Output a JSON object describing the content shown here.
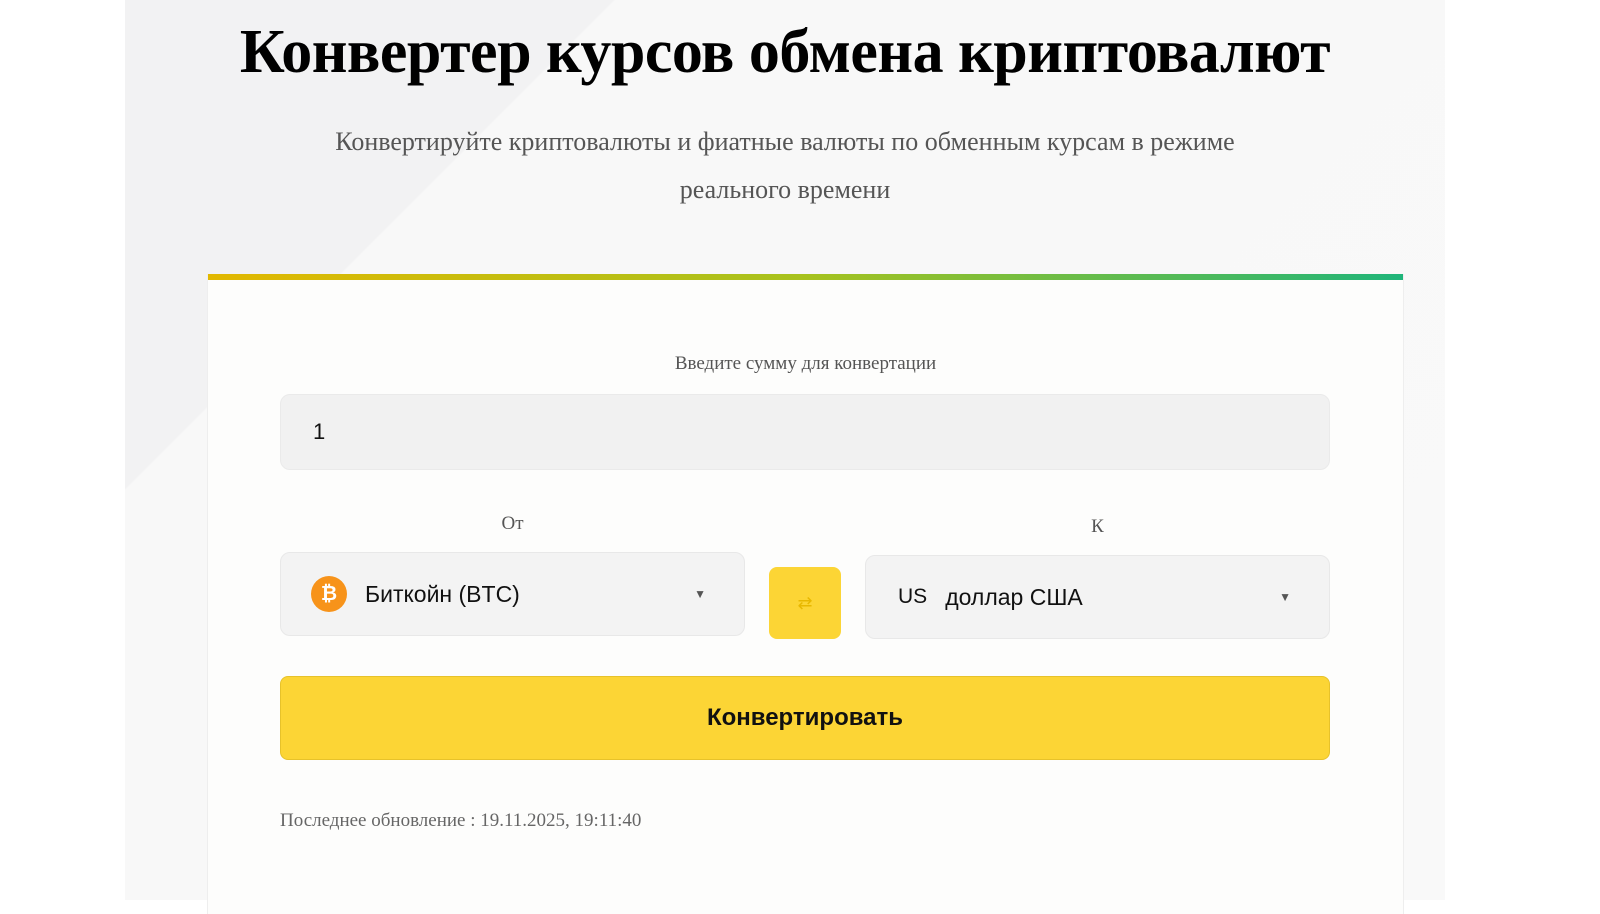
{
  "header": {
    "title": "Конвертер курсов обмена криптовалют",
    "subtitle": "Конвертируйте криптовалюты и фиатные валюты по обменным курсам в режиме реального времени"
  },
  "converter": {
    "amount_label": "Введите сумму для конвертации",
    "amount_value": "1",
    "from_label": "От",
    "to_label": "К",
    "from": {
      "icon": "bitcoin-icon",
      "icon_glyph": "₿",
      "value": "Биткойн (BTC)"
    },
    "to": {
      "code": "US",
      "value": "доллар США"
    },
    "swap_icon": "swap-arrows-icon",
    "convert_label": "Конвертировать",
    "last_update": "Последнее обновление : 19.11.2025, 19:11:40"
  },
  "colors": {
    "accent": "#fcd535",
    "bitcoin": "#f7931a"
  }
}
